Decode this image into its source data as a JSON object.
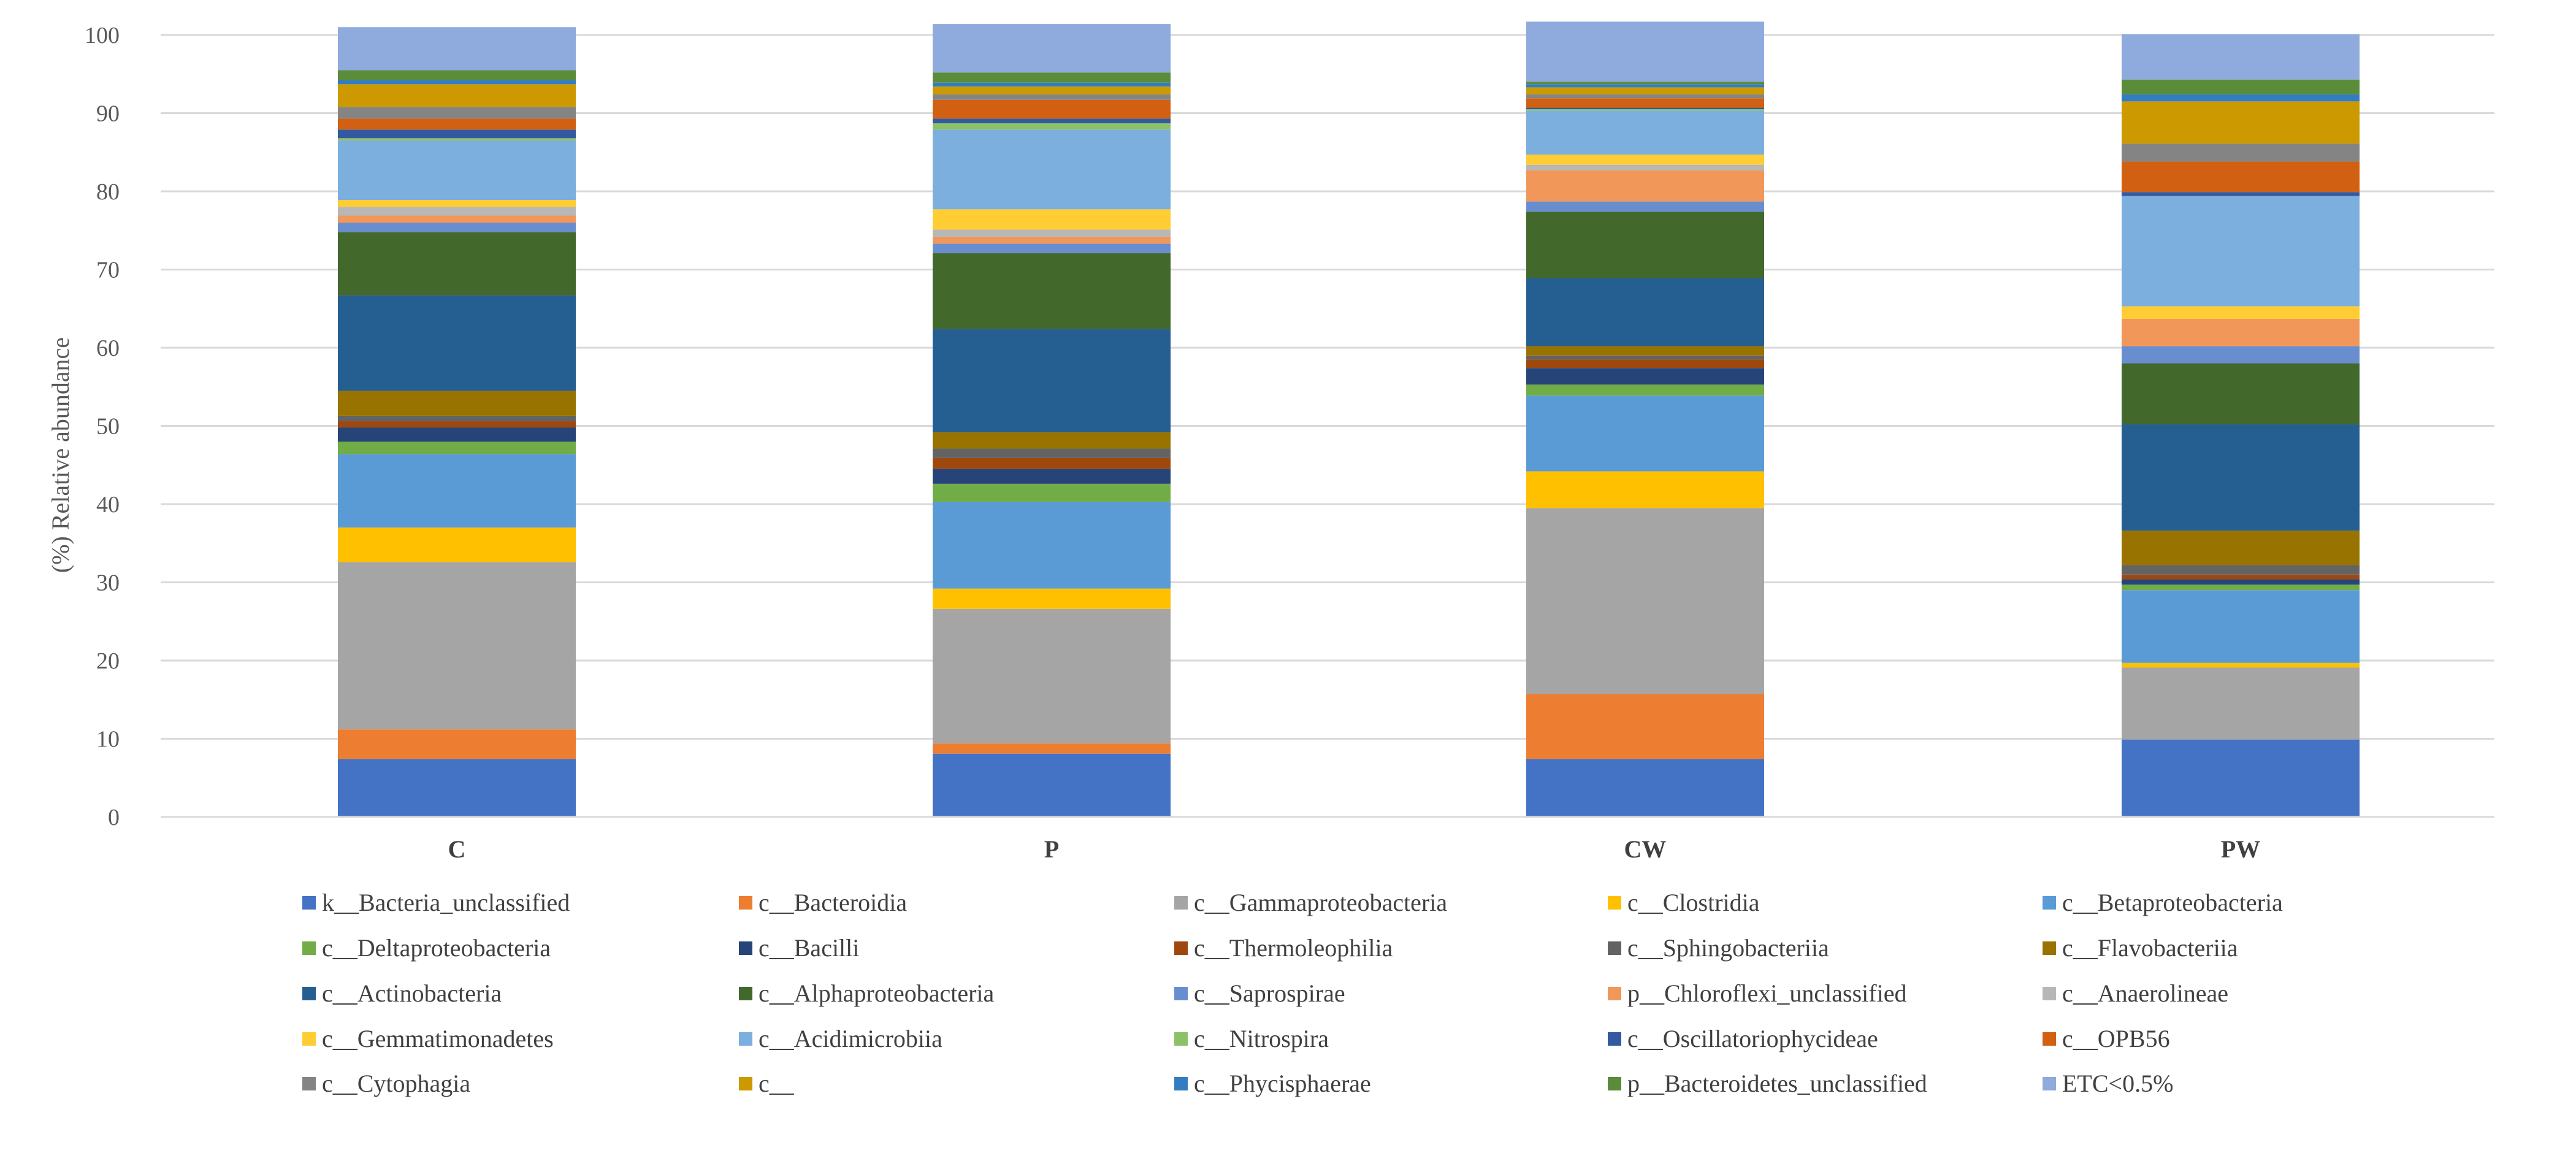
{
  "chart_data": {
    "type": "bar",
    "stacked": true,
    "title": "",
    "xlabel": "",
    "ylabel": "(%) Relative abundance",
    "ylim": [
      0,
      100
    ],
    "yticks": [
      0,
      10,
      20,
      30,
      40,
      50,
      60,
      70,
      80,
      90,
      100
    ],
    "grid": true,
    "legend_position": "bottom",
    "categories": [
      "C",
      "P",
      "CW",
      "PW"
    ],
    "series": [
      {
        "name": "k__Bacteria_unclassified",
        "color": "#4472C4",
        "values": [
          7.4,
          8.1,
          7.4,
          9.9
        ]
      },
      {
        "name": "c__Bacteroidia",
        "color": "#ED7D31",
        "values": [
          3.8,
          1.3,
          8.3,
          0.0
        ]
      },
      {
        "name": "c__Gammaproteobacteria",
        "color": "#A5A5A5",
        "values": [
          21.4,
          17.2,
          23.8,
          9.2
        ]
      },
      {
        "name": "c__Clostridia",
        "color": "#FFC000",
        "values": [
          4.4,
          2.6,
          4.7,
          0.6
        ]
      },
      {
        "name": "c__Betaproteobacteria",
        "color": "#5B9BD5",
        "values": [
          9.4,
          11.1,
          9.7,
          9.3
        ]
      },
      {
        "name": "c__Deltaproteobacteria",
        "color": "#70AD47",
        "values": [
          1.6,
          2.3,
          1.4,
          0.7
        ]
      },
      {
        "name": "c__Bacilli",
        "color": "#264478",
        "values": [
          1.8,
          1.9,
          2.1,
          0.7
        ]
      },
      {
        "name": "c__Thermoleophilia",
        "color": "#9E480E",
        "values": [
          0.8,
          1.4,
          1.1,
          0.6
        ]
      },
      {
        "name": "c__Sphingobacteriia",
        "color": "#636363",
        "values": [
          0.7,
          1.2,
          0.5,
          1.2
        ]
      },
      {
        "name": "c__Flavobacteriia",
        "color": "#997300",
        "values": [
          3.2,
          2.1,
          1.2,
          4.4
        ]
      },
      {
        "name": "c__Actinobacteria",
        "color": "#255E91",
        "values": [
          12.2,
          13.2,
          8.7,
          13.6
        ]
      },
      {
        "name": "c__Alphaproteobacteria",
        "color": "#43682B",
        "values": [
          8.1,
          9.7,
          8.5,
          7.8
        ]
      },
      {
        "name": "c__Saprospirae",
        "color": "#698ED0",
        "values": [
          1.2,
          1.2,
          1.3,
          2.2
        ]
      },
      {
        "name": "p__Chloroflexi_unclassified",
        "color": "#F1975A",
        "values": [
          0.9,
          0.9,
          4.0,
          3.5
        ]
      },
      {
        "name": "c__Anaerolineae",
        "color": "#B7B7B7",
        "values": [
          1.1,
          0.9,
          0.7,
          0.0
        ]
      },
      {
        "name": "c__Gemmatimonadetes",
        "color": "#FFCD33",
        "values": [
          0.9,
          2.6,
          1.3,
          1.6
        ]
      },
      {
        "name": "c__Acidimicrobiia",
        "color": "#7CAFDD",
        "values": [
          7.6,
          10.2,
          5.6,
          14.1
        ]
      },
      {
        "name": "c__Nitrospira",
        "color": "#8CC168",
        "values": [
          0.3,
          0.8,
          0.2,
          0.0
        ]
      },
      {
        "name": "c__Oscillatoriophycideae",
        "color": "#335AA1",
        "values": [
          1.1,
          0.6,
          0.2,
          0.5
        ]
      },
      {
        "name": "c__OPB56",
        "color": "#D26012",
        "values": [
          1.4,
          2.4,
          1.2,
          3.9
        ]
      },
      {
        "name": "c__Cytophagia",
        "color": "#848484",
        "values": [
          1.5,
          0.7,
          0.5,
          2.3
        ]
      },
      {
        "name": "c__",
        "color": "#CC9A00",
        "values": [
          2.9,
          1.0,
          0.9,
          5.4
        ]
      },
      {
        "name": "c__Phycisphaerae",
        "color": "#327DC2",
        "values": [
          0.5,
          0.5,
          0.4,
          0.9
        ]
      },
      {
        "name": "p__Bacteroidetes_unclassified",
        "color": "#5A8C3A",
        "values": [
          1.3,
          1.3,
          0.3,
          1.9
        ]
      },
      {
        "name": "ETC<0.5%",
        "color": "#8FAADC",
        "values": [
          5.5,
          6.2,
          7.7,
          5.8
        ]
      }
    ]
  }
}
